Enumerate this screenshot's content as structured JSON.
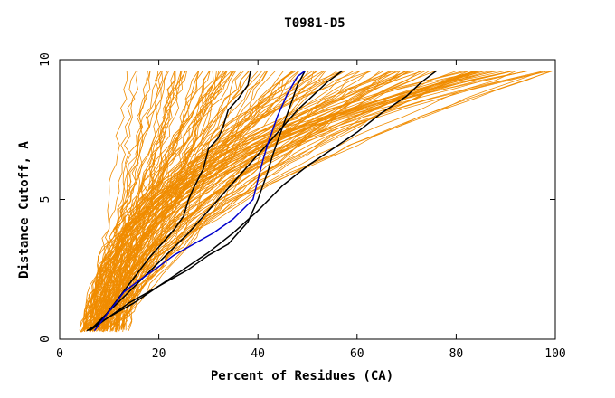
{
  "chart_data": {
    "type": "line",
    "title": "T0981-D5",
    "xlabel": "Percent of Residues (CA)",
    "ylabel": "Distance Cutoff, A",
    "xlim": [
      0,
      100
    ],
    "ylim": [
      0,
      10
    ],
    "xticks": [
      0,
      20,
      40,
      60,
      80,
      100
    ],
    "yticks": [
      0,
      5,
      10
    ],
    "grid": false,
    "colors": {
      "background_series": "#f08c00",
      "highlight_black": "#000000",
      "highlight_blue": "#0000cc",
      "axes": "#000000"
    },
    "background_series_count": 140,
    "highlighted_series": [
      {
        "name": "black-1",
        "color": "#000000",
        "x": [
          6,
          9,
          12,
          15,
          18,
          21,
          23,
          25,
          26,
          27,
          29,
          30,
          32,
          33,
          34,
          36,
          38,
          38.5
        ],
        "y": [
          0.3,
          0.8,
          1.5,
          2.2,
          2.9,
          3.5,
          3.9,
          4.4,
          5.0,
          5.4,
          6.1,
          6.8,
          7.2,
          7.6,
          8.2,
          8.6,
          9.1,
          9.6
        ]
      },
      {
        "name": "black-2",
        "color": "#000000",
        "x": [
          6,
          10,
          14,
          18,
          22,
          26,
          30,
          34,
          38,
          42,
          45,
          48,
          51,
          54,
          57
        ],
        "y": [
          0.3,
          1.0,
          1.7,
          2.4,
          3.1,
          3.8,
          4.6,
          5.4,
          6.2,
          7.0,
          7.6,
          8.2,
          8.7,
          9.2,
          9.6
        ]
      },
      {
        "name": "black-3",
        "color": "#000000",
        "x": [
          6,
          10,
          14,
          18,
          22,
          26,
          30,
          34,
          38,
          40,
          41,
          42,
          43,
          44,
          45,
          46,
          47,
          48,
          49.5
        ],
        "y": [
          0.3,
          0.8,
          1.3,
          1.7,
          2.1,
          2.5,
          3.0,
          3.4,
          4.2,
          5.0,
          5.5,
          6.0,
          6.6,
          7.1,
          7.6,
          8.1,
          8.6,
          9.1,
          9.6
        ]
      },
      {
        "name": "black-4",
        "color": "#000000",
        "x": [
          5.5,
          10,
          15,
          20,
          25,
          30,
          35,
          40,
          45,
          50,
          55,
          60,
          65,
          70,
          73,
          76
        ],
        "y": [
          0.3,
          0.8,
          1.3,
          1.9,
          2.5,
          3.1,
          3.8,
          4.6,
          5.5,
          6.2,
          6.8,
          7.4,
          8.1,
          8.7,
          9.2,
          9.6
        ]
      },
      {
        "name": "blue",
        "color": "#0000cc",
        "x": [
          7,
          10,
          13,
          16,
          20,
          23,
          27,
          31,
          35,
          39,
          40,
          41,
          42,
          43,
          44,
          45,
          46,
          47,
          48,
          49.5
        ],
        "y": [
          0.3,
          1.0,
          1.7,
          2.1,
          2.6,
          3.0,
          3.4,
          3.8,
          4.3,
          5.0,
          5.7,
          6.4,
          7.0,
          7.5,
          8.0,
          8.4,
          8.8,
          9.1,
          9.4,
          9.6
        ]
      }
    ]
  }
}
